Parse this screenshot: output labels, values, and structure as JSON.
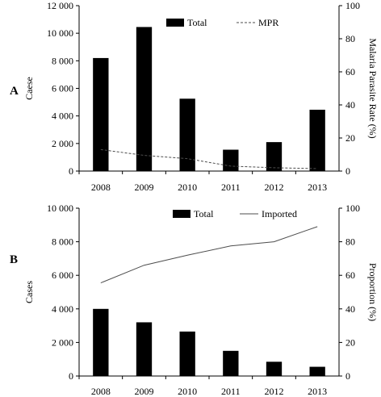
{
  "chart_data": [
    {
      "type": "bar+line",
      "panel_label": "A",
      "categories": [
        "2008",
        "2009",
        "2010",
        "2011",
        "2012",
        "2013"
      ],
      "series": [
        {
          "name": "Total",
          "kind": "bar",
          "axis": "left",
          "values": [
            8200,
            10450,
            5250,
            1550,
            2100,
            4450
          ]
        },
        {
          "name": "MPR",
          "kind": "line",
          "style": "dashed",
          "axis": "right",
          "values": [
            13,
            9.5,
            7.5,
            3,
            2,
            1.5
          ]
        }
      ],
      "ylabel": "Caese",
      "y2label": "Malaria Parasite Rate (%)",
      "ylim": [
        0,
        12000
      ],
      "y2lim": [
        0,
        100
      ],
      "yticks": [
        "0",
        "2 000",
        "4 000",
        "6 000",
        "8 000",
        "10 000",
        "12 000"
      ],
      "y2ticks": [
        "0",
        "20",
        "40",
        "60",
        "80",
        "100"
      ],
      "legend_position": "top"
    },
    {
      "type": "bar+line",
      "panel_label": "B",
      "categories": [
        "2008",
        "2009",
        "2010",
        "2011",
        "2012",
        "2013"
      ],
      "series": [
        {
          "name": "Total",
          "kind": "bar",
          "axis": "left",
          "values": [
            4000,
            3200,
            2650,
            1500,
            850,
            550
          ]
        },
        {
          "name": "Imported",
          "kind": "line",
          "style": "solid",
          "axis": "right",
          "values": [
            55.5,
            66,
            72,
            77.5,
            80,
            89
          ]
        }
      ],
      "ylabel": "Cases",
      "y2label": "Proportion (%)",
      "ylim": [
        0,
        10000
      ],
      "y2lim": [
        0,
        100
      ],
      "yticks": [
        "0",
        "2 000",
        "4 000",
        "6 000",
        "8 000",
        "10 000"
      ],
      "y2ticks": [
        "0",
        "20",
        "40",
        "60",
        "80",
        "100"
      ],
      "legend_position": "top"
    }
  ],
  "colors": {
    "bar": "#000000",
    "line": "#4d4d4d",
    "axis": "#000000"
  }
}
